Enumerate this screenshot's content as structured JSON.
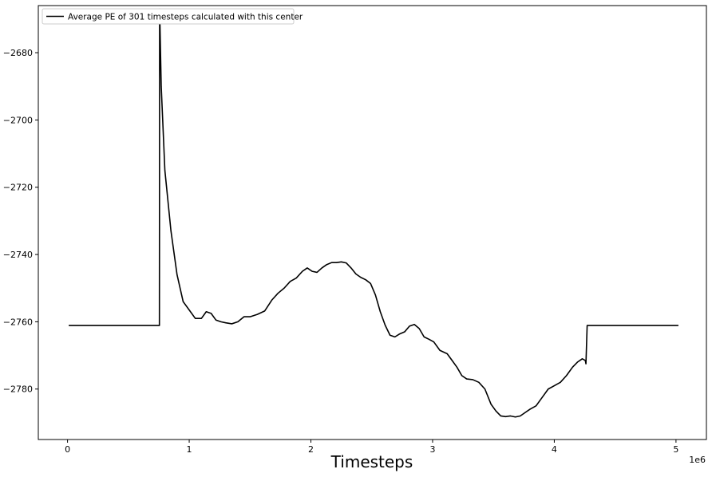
{
  "chart_data": {
    "type": "line",
    "title": "",
    "xlabel": "Timesteps",
    "ylabel": "",
    "x_offset_text": "1e6",
    "xlim": [
      -0.24,
      5.25
    ],
    "ylim": [
      -2795,
      -2666
    ],
    "x_ticks": [
      0,
      1,
      2,
      3,
      4,
      5
    ],
    "x_tick_labels": [
      "0",
      "1",
      "2",
      "3",
      "4",
      "5"
    ],
    "y_ticks": [
      -2780,
      -2760,
      -2740,
      -2720,
      -2700,
      -2680
    ],
    "y_tick_labels": [
      "−2780",
      "−2760",
      "−2740",
      "−2720",
      "−2700",
      "−2680"
    ],
    "grid": false,
    "legend_position": "top-left",
    "line_color": "#000000",
    "series": [
      {
        "name": "Average PE of 301 timesteps calculated with this center",
        "x": [
          0.01,
          0.755,
          0.757,
          0.77,
          0.8,
          0.85,
          0.9,
          0.95,
          1.0,
          1.05,
          1.1,
          1.14,
          1.18,
          1.22,
          1.26,
          1.3,
          1.35,
          1.4,
          1.45,
          1.5,
          1.56,
          1.62,
          1.68,
          1.73,
          1.78,
          1.83,
          1.88,
          1.93,
          1.97,
          2.01,
          2.05,
          2.09,
          2.13,
          2.17,
          2.21,
          2.25,
          2.29,
          2.33,
          2.37,
          2.41,
          2.45,
          2.49,
          2.53,
          2.57,
          2.61,
          2.65,
          2.69,
          2.73,
          2.77,
          2.81,
          2.85,
          2.89,
          2.93,
          2.97,
          3.01,
          3.06,
          3.12,
          3.16,
          3.2,
          3.24,
          3.28,
          3.33,
          3.38,
          3.43,
          3.48,
          3.52,
          3.56,
          3.6,
          3.64,
          3.68,
          3.72,
          3.76,
          3.8,
          3.85,
          3.9,
          3.95,
          4.0,
          4.05,
          4.1,
          4.15,
          4.19,
          4.23,
          4.255,
          4.26,
          4.27,
          5.02
        ],
        "y": [
          -2761.1,
          -2761.1,
          -2667.0,
          -2690,
          -2715,
          -2733,
          -2746,
          -2754,
          -2756.5,
          -2759,
          -2759,
          -2757,
          -2757.5,
          -2759.5,
          -2760,
          -2760.3,
          -2760.6,
          -2760,
          -2758.5,
          -2758.5,
          -2757.8,
          -2756.8,
          -2753.5,
          -2751.5,
          -2750,
          -2748,
          -2747,
          -2745,
          -2744,
          -2745,
          -2745.3,
          -2744,
          -2743,
          -2742.4,
          -2742.4,
          -2742.2,
          -2742.5,
          -2744,
          -2745.8,
          -2746.8,
          -2747.5,
          -2748.6,
          -2752,
          -2757,
          -2761,
          -2764,
          -2764.5,
          -2763.6,
          -2763,
          -2761.3,
          -2760.8,
          -2762,
          -2764.5,
          -2765.2,
          -2766,
          -2768.5,
          -2769.5,
          -2771.5,
          -2773.5,
          -2776,
          -2777,
          -2777.2,
          -2778,
          -2780,
          -2784.5,
          -2786.5,
          -2788,
          -2788.2,
          -2788,
          -2788.3,
          -2788,
          -2787,
          -2786,
          -2785,
          -2782.5,
          -2780,
          -2779,
          -2778,
          -2776,
          -2773.5,
          -2772,
          -2771,
          -2771.5,
          -2772.5,
          -2761.1,
          -2761.1
        ]
      }
    ]
  }
}
